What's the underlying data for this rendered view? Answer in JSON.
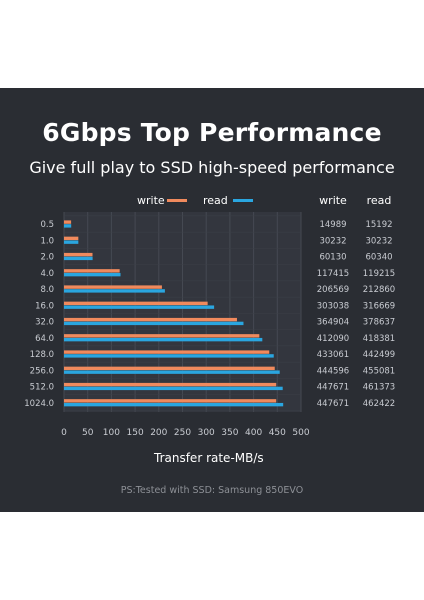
{
  "title": "6Gbps Top Performance",
  "subtitle": "Give full play to SSD high-speed performance",
  "note": "PS:Tested with SSD: Samsung 850EVO",
  "colors": {
    "background": "#2a2d33",
    "plot_bg": "#33363e",
    "write": "#f08a5d",
    "read": "#2aa6e0",
    "text": "#ffffff",
    "muted": "#c9ccd2"
  },
  "chart_data": {
    "type": "bar",
    "orientation": "horizontal",
    "xlabel": "Transfer rate-MB/s",
    "ylabel": "",
    "xlim": [
      0,
      500
    ],
    "xticks": [
      0,
      50,
      100,
      150,
      200,
      250,
      300,
      350,
      400,
      450,
      500
    ],
    "grid": true,
    "legend": [
      "write",
      "read"
    ],
    "table_headers": [
      "write",
      "read"
    ],
    "categories": [
      "0.5",
      "1.0",
      "2.0",
      "4.0",
      "8.0",
      "16.0",
      "32.0",
      "64.0",
      "128.0",
      "256.0",
      "512.0",
      "1024.0"
    ],
    "series": [
      {
        "name": "write",
        "values": [
          14.989,
          30.232,
          60.13,
          117.415,
          206.569,
          303.038,
          364.904,
          412.09,
          433.061,
          444.596,
          447.671,
          447.671
        ]
      },
      {
        "name": "read",
        "values": [
          15.192,
          30.232,
          60.34,
          119.215,
          212.86,
          316.669,
          378.637,
          418.381,
          442.499,
          455.081,
          461.373,
          462.422
        ]
      }
    ],
    "table_values": [
      [
        "14989",
        "15192"
      ],
      [
        "30232",
        "30232"
      ],
      [
        "60130",
        "60340"
      ],
      [
        "117415",
        "119215"
      ],
      [
        "206569",
        "212860"
      ],
      [
        "303038",
        "316669"
      ],
      [
        "364904",
        "378637"
      ],
      [
        "412090",
        "418381"
      ],
      [
        "433061",
        "442499"
      ],
      [
        "444596",
        "455081"
      ],
      [
        "447671",
        "461373"
      ],
      [
        "447671",
        "462422"
      ]
    ]
  }
}
